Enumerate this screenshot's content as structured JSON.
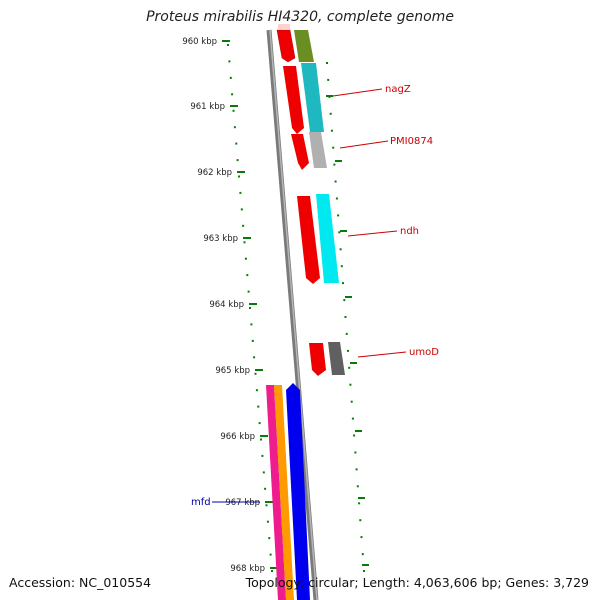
{
  "header": {
    "title": "Proteus mirabilis HI4320, complete genome"
  },
  "footer": {
    "accession": "Accession: NC_010554",
    "topology": "Topology: circular; Length: 4,063,606 bp; Genes: 3,729"
  },
  "scale": {
    "ticks": [
      "960 kbp",
      "961 kbp",
      "962 kbp",
      "963 kbp",
      "964 kbp",
      "965 kbp",
      "966 kbp",
      "967 kbp",
      "968 kbp"
    ],
    "tick_color": "#0a7a0a"
  },
  "genes": [
    {
      "label": "nagZ",
      "label_color": "#cc0000"
    },
    {
      "label": "PMI0874",
      "label_color": "#cc0000"
    },
    {
      "label": "ndh",
      "label_color": "#cc0000"
    },
    {
      "label": "umoD",
      "label_color": "#cc0000"
    },
    {
      "label": "mfd",
      "label_color": "#0000aa"
    }
  ],
  "colors": {
    "red_feature": "#ee0000",
    "olive_feature": "#6b8e23",
    "teal_feature": "#20b8c0",
    "cyan_feature": "#00e8f0",
    "grey_feature": "#b0b0b0",
    "dark_grey_feature": "#606060",
    "blue_feature": "#0000ee",
    "magenta_feature": "#ee1c8c",
    "orange_feature": "#ff9a00",
    "backbone": "#888888"
  }
}
